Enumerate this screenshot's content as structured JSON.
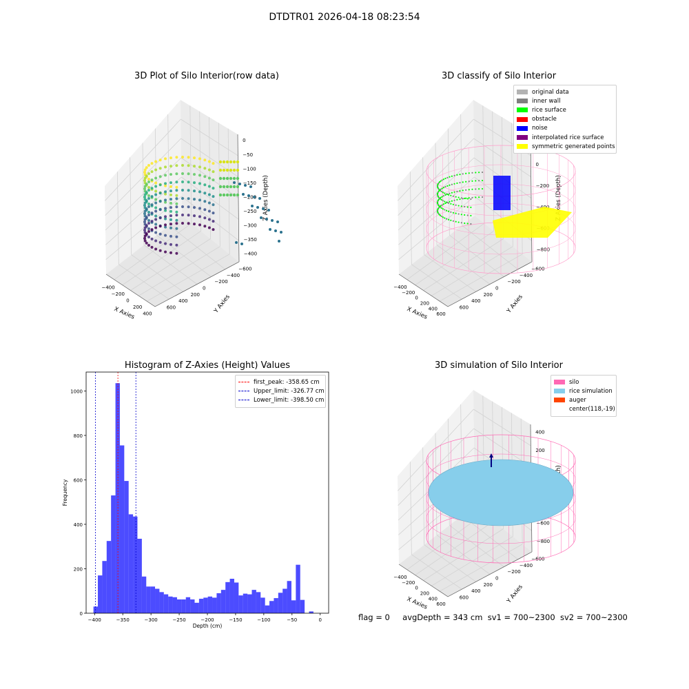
{
  "suptitle": "DTDTR01 2026-04-18 08:23:54",
  "footer": {
    "flag": "flag = 0",
    "avg": "avgDepth = 343 cm",
    "sv1": "sv1 = 700~2300",
    "sv2": "sv2 = 700~2300"
  },
  "panels": {
    "raw": {
      "title": "3D Plot of Silo Interior(row data)",
      "xlabel": "X Axies",
      "ylabel": "Y Axies",
      "zlabel": "Z Axies (Depth)",
      "xticks": [
        "−400",
        "−200",
        "0",
        "200",
        "400"
      ],
      "yticks": [
        "−600",
        "−400",
        "−200",
        "0",
        "200",
        "400",
        "600"
      ],
      "zticks": [
        "0",
        "−50",
        "−100",
        "−150",
        "−200",
        "−250",
        "−300",
        "−350",
        "−400"
      ]
    },
    "classify": {
      "title": "3D classify of Silo Interior",
      "xlabel": "X Axies",
      "ylabel": "Y Axies",
      "zlabel": "Z Axies (Depth)",
      "xticks": [
        "−400",
        "−200",
        "0",
        "200",
        "400",
        "600"
      ],
      "yticks": [
        "−600",
        "−400",
        "−200",
        "0",
        "200",
        "400",
        "600"
      ],
      "zticks": [
        "200",
        "0",
        "−200",
        "−400",
        "−600",
        "−800"
      ],
      "legend": [
        {
          "label": "original data",
          "color": "#b3b3b3"
        },
        {
          "label": "inner wall",
          "color": "#808080"
        },
        {
          "label": "rice surface",
          "color": "#00ff00"
        },
        {
          "label": "obstacle",
          "color": "#ff0000"
        },
        {
          "label": "noise",
          "color": "#0000ff"
        },
        {
          "label": "interpolated rice surface",
          "color": "#800080"
        },
        {
          "label": "symmetric generated points",
          "color": "#ffff00"
        }
      ]
    },
    "simulation": {
      "title": "3D simulation of Silo Interior",
      "xlabel": "X Axies",
      "ylabel": "Y Axies",
      "zlabel": "Z Axies (Depth)",
      "xticks": [
        "−400",
        "−200",
        "0",
        "200",
        "400",
        "600"
      ],
      "yticks": [
        "−600",
        "−400",
        "−200",
        "0",
        "200",
        "400",
        "600"
      ],
      "zticks": [
        "400",
        "200",
        "0",
        "−200",
        "−400",
        "−600",
        "−800"
      ],
      "legend": [
        {
          "label": "silo",
          "color": "#ff69b4"
        },
        {
          "label": "rice simulation",
          "color": "#87ceeb"
        },
        {
          "label": "auger",
          "color": "#ff4500"
        },
        {
          "label": "center(118,-19)",
          "color": ""
        }
      ]
    }
  },
  "chart_data": [
    {
      "type": "bar",
      "title": "Histogram of Z-Axies (Height) Values",
      "xlabel": "Depth (cm)",
      "ylabel": "Frequency",
      "xlim": [
        -415,
        15
      ],
      "ylim": [
        0,
        1085
      ],
      "xticks": [
        -400,
        -350,
        -300,
        -250,
        -200,
        -150,
        -100,
        -50,
        0
      ],
      "yticks": [
        0,
        200,
        400,
        600,
        800,
        1000
      ],
      "bin_width": 7.8,
      "bin_start": -402,
      "bar_color": "#0000ff",
      "values": [
        30,
        170,
        235,
        325,
        530,
        1035,
        755,
        595,
        445,
        435,
        335,
        165,
        120,
        120,
        110,
        95,
        85,
        75,
        72,
        62,
        62,
        72,
        62,
        47,
        65,
        70,
        75,
        70,
        90,
        105,
        140,
        155,
        138,
        80,
        88,
        85,
        105,
        95,
        70,
        35,
        55,
        68,
        92,
        110,
        145,
        58,
        218,
        60,
        0,
        8
      ],
      "vlines": [
        {
          "label": "first_peak: -358.65 cm",
          "x": -358.65,
          "color": "#ff0000"
        },
        {
          "label": "Upper_limit: -326.77 cm",
          "x": -326.77,
          "color": "#0000cd"
        },
        {
          "label": "Lower_limit: -398.50 cm",
          "x": -398.5,
          "color": "#0000cd"
        }
      ]
    }
  ]
}
